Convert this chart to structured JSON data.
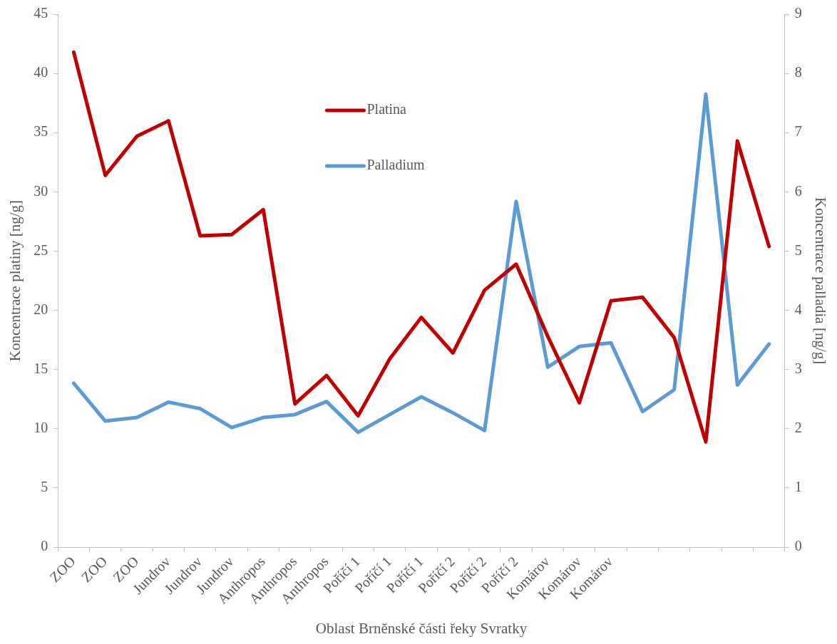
{
  "chart_data": {
    "type": "line",
    "xlabel": "Oblast Brněnské části řeky Svratky",
    "ylabel": "Koncentrace platiny [ng/g]",
    "y2label": "Koncentrace palladia [ng/g]",
    "categories": [
      "ZOO",
      "ZOO",
      "ZOO",
      "Jundrov",
      "Jundrov",
      "Jundrov",
      "Anthropos",
      "Anthropos",
      "Anthropos",
      "Poříčí 1",
      "Poříčí 1",
      "Poříčí 1",
      "Poříčí 2",
      "Poříčí 2",
      "Poříčí 2",
      "Komárov",
      "Komárov",
      "Komárov",
      null,
      null,
      null,
      null,
      null
    ],
    "series": [
      {
        "name": "Platina",
        "color": "#c00000",
        "values": [
          41.8,
          31.4,
          34.7,
          36.0,
          26.3,
          26.4,
          28.5,
          12.1,
          14.5,
          11.1,
          15.9,
          19.4,
          16.4,
          21.7,
          23.9,
          17.8,
          12.2,
          20.8,
          21.1,
          17.7,
          8.9,
          34.3,
          25.4
        ]
      },
      {
        "name": "Palladium",
        "color": "#5b9bd5",
        "axis": "y2",
        "values": [
          2.77,
          2.13,
          2.19,
          2.45,
          2.34,
          2.02,
          2.19,
          2.24,
          2.46,
          1.94,
          2.24,
          2.54,
          2.27,
          1.97,
          5.84,
          3.04,
          3.39,
          3.45,
          2.29,
          2.66,
          7.65,
          2.74,
          3.43
        ]
      }
    ],
    "ylim": [
      0,
      45
    ],
    "yticks": [
      0,
      5,
      10,
      15,
      20,
      25,
      30,
      35,
      40,
      45
    ],
    "y2lim": [
      0,
      9
    ],
    "y2ticks": [
      0,
      1,
      2,
      3,
      4,
      5,
      6,
      7,
      8,
      9
    ],
    "grid": false,
    "legend": "top",
    "marker": "none",
    "line_style": "solid"
  }
}
